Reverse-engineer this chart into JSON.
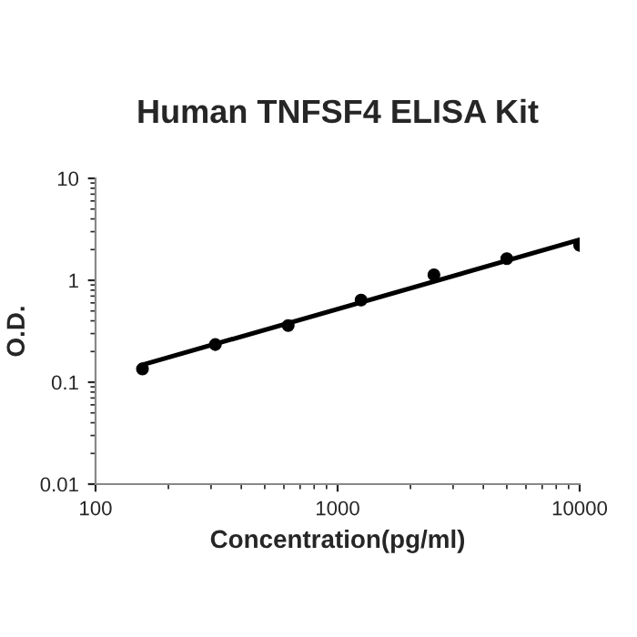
{
  "chart_data": {
    "type": "scatter",
    "title": "Human TNFSF4 ELISA Kit",
    "xlabel": "Concentration(pg/ml)",
    "ylabel": "O.D.",
    "log": "xy",
    "grid": false,
    "legend": false,
    "marker": "circle",
    "x": [
      156.25,
      312.5,
      625,
      1250,
      2500,
      5000,
      10000
    ],
    "series": [
      {
        "color": "#000000",
        "values": [
          0.135,
          0.234,
          0.36,
          0.64,
          1.13,
          1.63,
          2.2
        ]
      },
      {
        "type": "line",
        "color": "#000000",
        "x": [
          156.25,
          10000
        ],
        "values": [
          0.148,
          2.5
        ],
        "line_style": "solid",
        "marker": "none"
      }
    ],
    "xlim": [
      100,
      10000
    ],
    "xticks": [
      100,
      1000,
      10000
    ],
    "ylim": [
      0.01,
      10
    ],
    "yticks": [
      0.01,
      0.1,
      1,
      10
    ]
  }
}
